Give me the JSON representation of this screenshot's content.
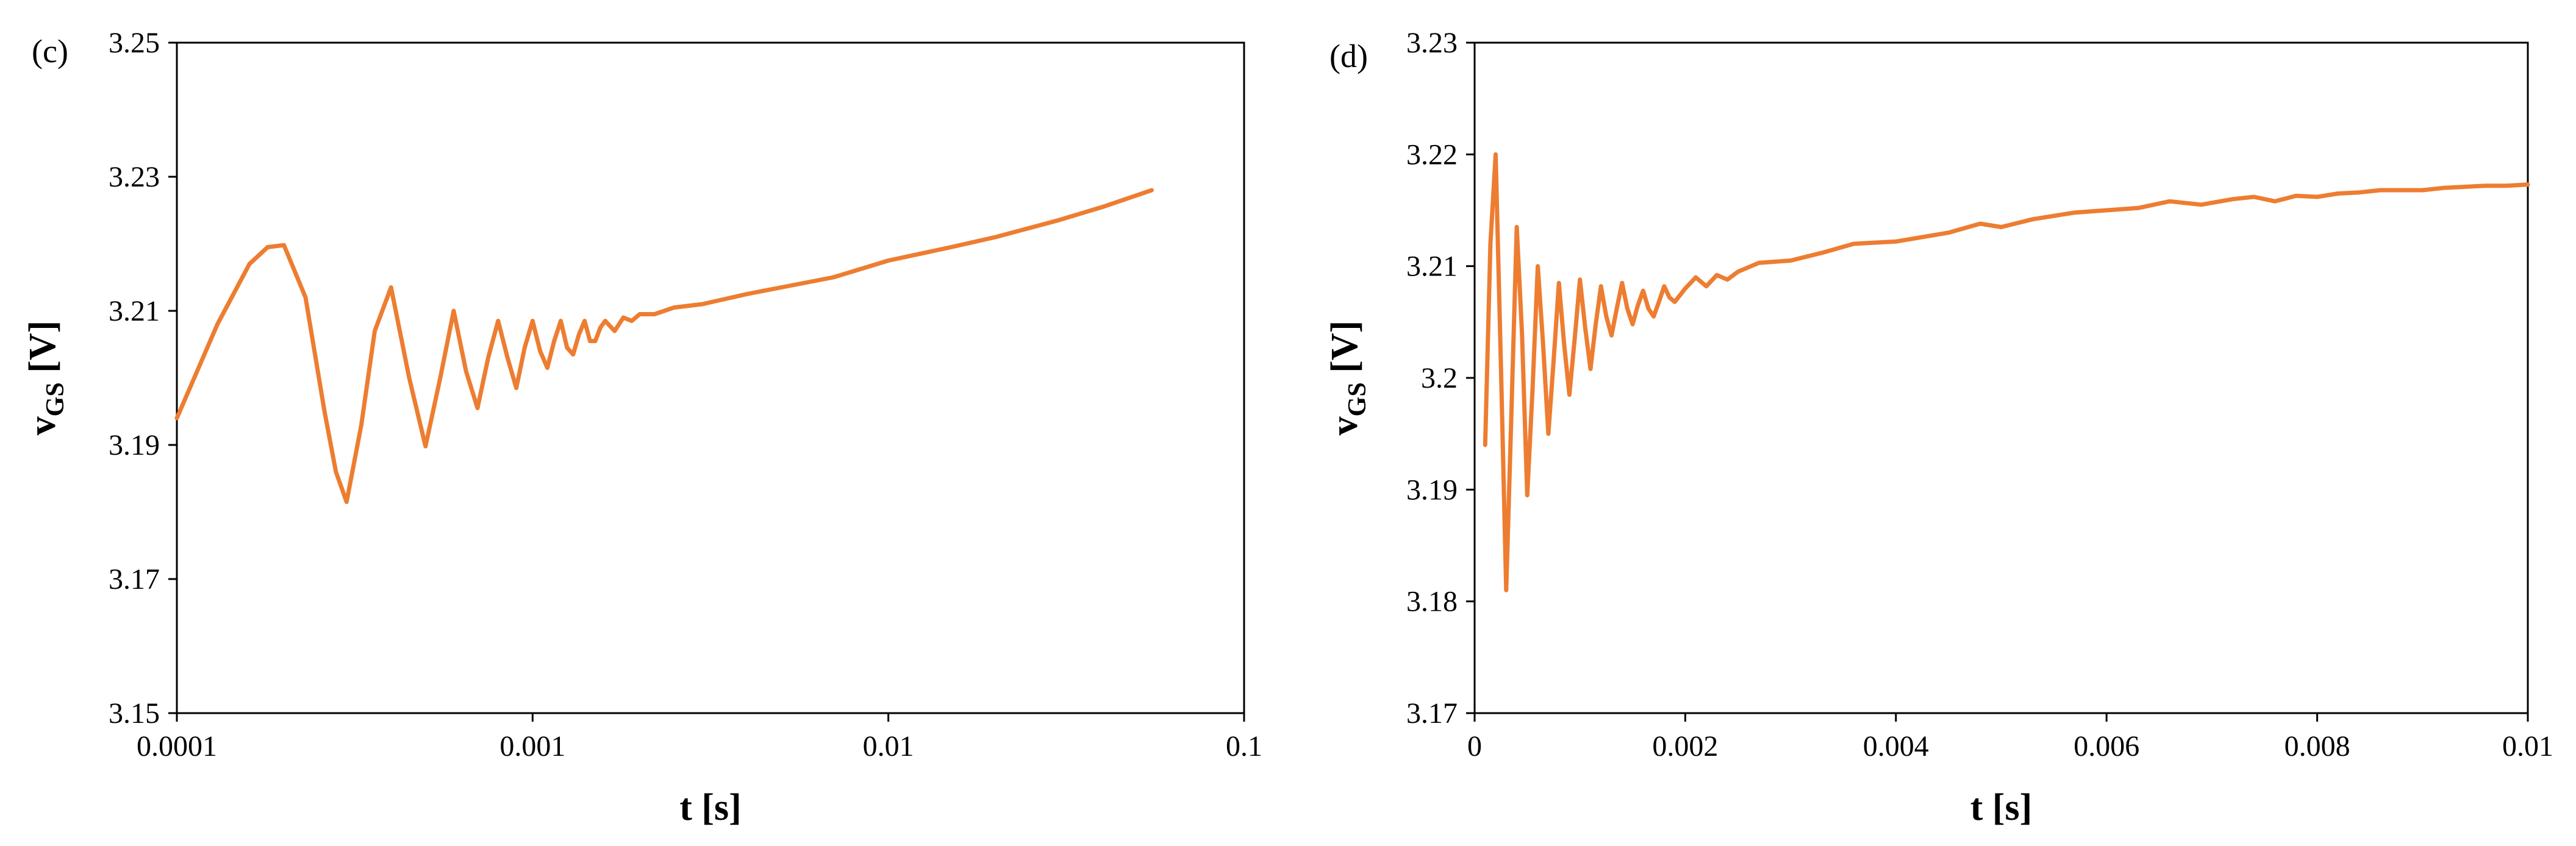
{
  "colors": {
    "series": "#ED7D31",
    "axis": "#000000",
    "background": "#FFFFFF"
  },
  "chart_data": [
    {
      "type": "line",
      "panel_label": "(c)",
      "xscale": "log",
      "xlim": [
        0.0001,
        0.1
      ],
      "ylim": [
        3.15,
        3.25
      ],
      "xticks": [
        "0.0001",
        "0.001",
        "0.01",
        "0.1"
      ],
      "yticks": [
        "3.15",
        "3.17",
        "3.19",
        "3.21",
        "3.23",
        "3.25"
      ],
      "xlabel": "t [s]",
      "ylabel_main": "v",
      "ylabel_sub": "GS",
      "ylabel_unit": " [V]",
      "grid": false,
      "series": [
        {
          "x": [
            0.0001,
            0.00013,
            0.00016,
            0.00018,
            0.0002,
            0.00023,
            0.00026,
            0.00028,
            0.0003,
            0.00033,
            0.00036,
            0.0004,
            0.00045,
            0.0005,
            0.00055,
            0.0006,
            0.00065,
            0.0007,
            0.00075,
            0.0008,
            0.00085,
            0.0009,
            0.00095,
            0.001,
            0.00105,
            0.0011,
            0.00115,
            0.0012,
            0.00125,
            0.0013,
            0.00135,
            0.0014,
            0.00145,
            0.0015,
            0.00155,
            0.0016,
            0.0017,
            0.0018,
            0.0019,
            0.002,
            0.0022,
            0.0025,
            0.003,
            0.004,
            0.005,
            0.007,
            0.01,
            0.015,
            0.02,
            0.03,
            0.04,
            0.055
          ],
          "y": [
            3.194,
            3.208,
            3.217,
            3.2195,
            3.2198,
            3.212,
            3.195,
            3.186,
            3.1815,
            3.193,
            3.207,
            3.2135,
            3.2,
            3.1898,
            3.2,
            3.21,
            3.201,
            3.1955,
            3.203,
            3.2085,
            3.203,
            3.1985,
            3.2045,
            3.2085,
            3.204,
            3.2015,
            3.2055,
            3.2085,
            3.2045,
            3.2035,
            3.2065,
            3.2085,
            3.2055,
            3.2055,
            3.2075,
            3.2085,
            3.207,
            3.209,
            3.2085,
            3.2095,
            3.2095,
            3.2105,
            3.211,
            3.2125,
            3.2135,
            3.215,
            3.2175,
            3.2195,
            3.221,
            3.2235,
            3.2255,
            3.228
          ]
        }
      ]
    },
    {
      "type": "line",
      "panel_label": "(d)",
      "xscale": "linear",
      "xlim": [
        0,
        0.01
      ],
      "ylim": [
        3.17,
        3.23
      ],
      "xticks": [
        "0",
        "0.002",
        "0.004",
        "0.006",
        "0.008",
        "0.01"
      ],
      "yticks": [
        "3.17",
        "3.18",
        "3.19",
        "3.2",
        "3.21",
        "3.22",
        "3.23"
      ],
      "xlabel": "t [s]",
      "ylabel_main": "v",
      "ylabel_sub": "GS",
      "ylabel_unit": " [V]",
      "grid": false,
      "series": [
        {
          "x": [
            0.0001,
            0.00015,
            0.0002,
            0.00025,
            0.0003,
            0.00035,
            0.0004,
            0.00045,
            0.0005,
            0.00055,
            0.0006,
            0.00065,
            0.0007,
            0.00075,
            0.0008,
            0.00085,
            0.0009,
            0.00095,
            0.001,
            0.00105,
            0.0011,
            0.00115,
            0.0012,
            0.00125,
            0.0013,
            0.00135,
            0.0014,
            0.00145,
            0.0015,
            0.00155,
            0.0016,
            0.00165,
            0.0017,
            0.00175,
            0.0018,
            0.00185,
            0.0019,
            0.002,
            0.0021,
            0.0022,
            0.0023,
            0.0024,
            0.0025,
            0.0027,
            0.003,
            0.0033,
            0.0036,
            0.004,
            0.0045,
            0.0048,
            0.005,
            0.0053,
            0.0055,
            0.0057,
            0.006,
            0.0063,
            0.0066,
            0.0069,
            0.0072,
            0.0074,
            0.0076,
            0.0078,
            0.008,
            0.0082,
            0.0084,
            0.0086,
            0.0088,
            0.009,
            0.0092,
            0.0094,
            0.0096,
            0.0098,
            0.01
          ],
          "y": [
            3.194,
            3.212,
            3.22,
            3.201,
            3.181,
            3.197,
            3.2135,
            3.204,
            3.1895,
            3.199,
            3.21,
            3.203,
            3.195,
            3.2015,
            3.2085,
            3.203,
            3.1985,
            3.2035,
            3.2088,
            3.2045,
            3.2008,
            3.2048,
            3.2082,
            3.2055,
            3.2038,
            3.2062,
            3.2085,
            3.2062,
            3.2048,
            3.2065,
            3.2078,
            3.2062,
            3.2055,
            3.2068,
            3.2082,
            3.2072,
            3.2068,
            3.208,
            3.209,
            3.2082,
            3.2092,
            3.2088,
            3.2095,
            3.2103,
            3.2105,
            3.2112,
            3.212,
            3.2122,
            3.213,
            3.2138,
            3.2135,
            3.2142,
            3.2145,
            3.2148,
            3.215,
            3.2152,
            3.2158,
            3.2155,
            3.216,
            3.2162,
            3.2158,
            3.2163,
            3.2162,
            3.2165,
            3.2166,
            3.2168,
            3.2168,
            3.2168,
            3.217,
            3.2171,
            3.2172,
            3.2172,
            3.2173
          ]
        }
      ]
    }
  ]
}
